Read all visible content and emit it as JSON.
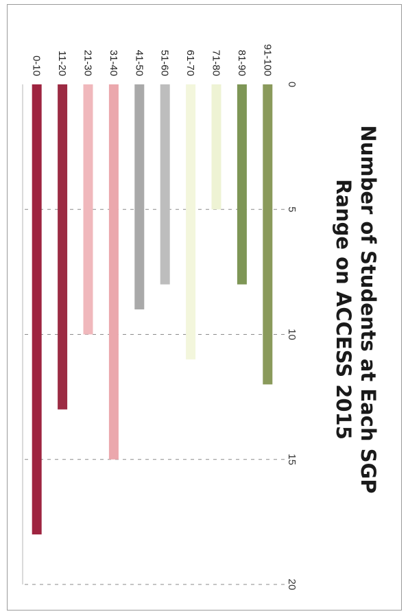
{
  "chart_data": {
    "type": "bar",
    "orientation": "horizontal",
    "title_lines": [
      "Number of Students at Each SGP",
      "Range on ACCESS 2015"
    ],
    "categories": [
      "91-100",
      "81-90",
      "71-80",
      "61-70",
      "51-60",
      "41-50",
      "31-40",
      "21-30",
      "11-20",
      "0-10"
    ],
    "values": [
      12,
      8,
      5,
      11,
      8,
      9,
      15,
      10,
      13,
      18
    ],
    "colors": [
      "#8a9a5b",
      "#7e9656",
      "#eef3d4",
      "#f3f6dc",
      "#bdbdbd",
      "#a9a9a9",
      "#eba8ad",
      "#f0b8bc",
      "#9c2b43",
      "#9e2440"
    ],
    "xticks": [
      "0",
      "5",
      "10",
      "15",
      "20"
    ],
    "xlim": [
      0,
      20
    ],
    "xlabel": "",
    "ylabel": "",
    "grid": true,
    "legend": "none",
    "rotation": "page rotated 90 degrees clockwise"
  }
}
